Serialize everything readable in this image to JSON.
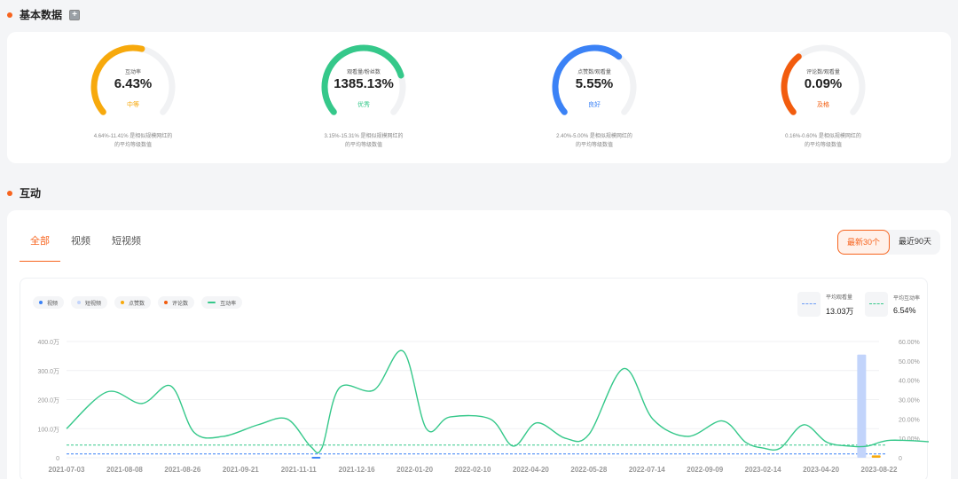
{
  "basic_section": {
    "title": "基本数据"
  },
  "gauges": [
    {
      "label": "互动率",
      "value": "6.43%",
      "grade": "中等",
      "color": "#f7a90c",
      "ratio": 0.55,
      "desc_line1": "4.64%-11.41% 是相似规模网红的",
      "desc_line2": "的平均等级数值"
    },
    {
      "label": "观看量/粉丝数",
      "value": "1385.13%",
      "grade": "优秀",
      "color": "#35c88a",
      "ratio": 0.78,
      "desc_line1": "3.15%-15.31% 是相似规模网红的",
      "desc_line2": "的平均等级数值"
    },
    {
      "label": "点赞数/观看量",
      "value": "5.55%",
      "grade": "良好",
      "color": "#3b82f6",
      "ratio": 0.65,
      "desc_line1": "2.40%-5.00% 是相似规模网红的",
      "desc_line2": "的平均等级数值"
    },
    {
      "label": "评论数/观看量",
      "value": "0.09%",
      "grade": "及格",
      "color": "#f25c0e",
      "ratio": 0.35,
      "desc_line1": "0.16%-0.60% 是相似规模网红的",
      "desc_line2": "的平均等级数值"
    }
  ],
  "interaction_section": {
    "title": "互动"
  },
  "tabs": [
    {
      "label": "全部"
    },
    {
      "label": "视频"
    },
    {
      "label": "短视频"
    }
  ],
  "range_buttons": {
    "recent30": "最新30个",
    "recent90": "最近90天"
  },
  "legend": {
    "video": "视频",
    "short": "短视频",
    "likes": "点赞数",
    "comments": "评论数",
    "rate": "互动率"
  },
  "stats": {
    "avg_views_label": "平均观看量",
    "avg_views": "13.03万",
    "avg_rate_label": "平均互动率",
    "avg_rate": "6.54%"
  },
  "colors": {
    "accent": "#f7641e",
    "video": "#3b82f6",
    "short": "#c2d4fb",
    "likes": "#f7a90c",
    "comments": "#f25c0e",
    "rate": "#35c88a"
  },
  "chart_data": {
    "type": "line",
    "x": [
      "2021-07-03",
      "2021-08-08",
      "2021-08-26",
      "2021-09-21",
      "2021-11-11",
      "2021-12-16",
      "2022-01-20",
      "2022-02-10",
      "2022-04-20",
      "2022-05-28",
      "2022-07-14",
      "2022-09-09",
      "2023-02-14",
      "2023-04-20",
      "2023-08-22"
    ],
    "left_axis": {
      "ticks": [
        "0",
        "100.0万",
        "200.0万",
        "300.0万",
        "400.0万"
      ],
      "ylim": [
        0,
        400
      ]
    },
    "right_axis": {
      "ticks": [
        "0",
        "10.00%",
        "20.00%",
        "30.00%",
        "40.00%",
        "50.00%",
        "60.00%"
      ],
      "ylim": [
        0,
        60
      ]
    },
    "series": [
      {
        "name": "互动率",
        "axis": "right",
        "values": [
          [
            0,
            15
          ],
          [
            0.7,
            34
          ],
          [
            1.3,
            28
          ],
          [
            1.8,
            37
          ],
          [
            2.2,
            13
          ],
          [
            2.7,
            11
          ],
          [
            3.3,
            17
          ],
          [
            3.8,
            20
          ],
          [
            4.2,
            6
          ],
          [
            4.4,
            5
          ],
          [
            4.7,
            36
          ],
          [
            5.3,
            35
          ],
          [
            5.8,
            55
          ],
          [
            6.2,
            15
          ],
          [
            6.6,
            21
          ],
          [
            7.3,
            20
          ],
          [
            7.7,
            6
          ],
          [
            8.1,
            18
          ],
          [
            8.6,
            10
          ],
          [
            9.0,
            12
          ],
          [
            9.6,
            46
          ],
          [
            10.1,
            20
          ],
          [
            10.7,
            11
          ],
          [
            11.3,
            19
          ],
          [
            11.7,
            8
          ],
          [
            12.0,
            5
          ],
          [
            12.3,
            5
          ],
          [
            12.7,
            17
          ],
          [
            13.1,
            8
          ],
          [
            13.5,
            6
          ],
          [
            13.8,
            6
          ],
          [
            14.2,
            9
          ],
          [
            15,
            8
          ]
        ]
      },
      {
        "name": "视频",
        "axis": "left",
        "values": [
          [
            4.3,
            3
          ]
        ]
      },
      {
        "name": "短视频",
        "axis": "left",
        "values": [
          [
            13.7,
            355
          ]
        ]
      },
      {
        "name": "点赞数",
        "axis": "left",
        "values": [
          [
            13.95,
            8
          ]
        ]
      }
    ],
    "avg_views_line": 13.03,
    "avg_rate_line": 6.54
  }
}
